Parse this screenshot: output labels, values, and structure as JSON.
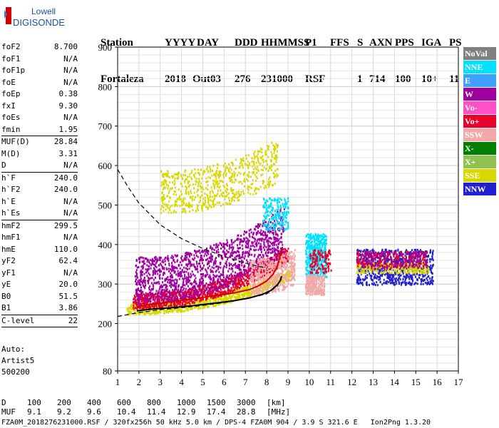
{
  "logo": {
    "line1": "Lowell",
    "line2": "DIGISONDE"
  },
  "header": {
    "labels": [
      "Station",
      "YYYY",
      "DAY",
      "DDD",
      "HHMMSS",
      "P1",
      "FFS",
      "S",
      "AXN",
      "PPS",
      "IGA",
      "PS"
    ],
    "values": [
      "Fortaleza",
      "2018",
      "Out03",
      "276",
      "231000",
      "RSF",
      "1",
      "714",
      "100",
      "10+",
      "11"
    ]
  },
  "params": [
    {
      "label": "foF2",
      "value": "8.700"
    },
    {
      "label": "foF1",
      "value": "N/A"
    },
    {
      "label": "foF1p",
      "value": "N/A"
    },
    {
      "label": "foE",
      "value": "N/A"
    },
    {
      "label": "foEp",
      "value": "0.38"
    },
    {
      "label": "fxI",
      "value": "9.30"
    },
    {
      "label": "foEs",
      "value": "N/A"
    },
    {
      "label": "fmin",
      "value": "1.95"
    },
    {
      "sep": true
    },
    {
      "label": "MUF(D)",
      "value": "28.84"
    },
    {
      "label": "M(D)",
      "value": "3.31"
    },
    {
      "label": "D",
      "value": "N/A"
    },
    {
      "sep": true
    },
    {
      "label": "h`F",
      "value": "240.0"
    },
    {
      "label": "h`F2",
      "value": "240.0"
    },
    {
      "label": "h`E",
      "value": "N/A"
    },
    {
      "label": "h`Es",
      "value": "N/A"
    },
    {
      "sep": true
    },
    {
      "label": "hmF2",
      "value": "299.5"
    },
    {
      "label": "hmF1",
      "value": "N/A"
    },
    {
      "label": "hmE",
      "value": "110.0"
    },
    {
      "label": "yF2",
      "value": "62.4"
    },
    {
      "label": "yF1",
      "value": "N/A"
    },
    {
      "label": "yE",
      "value": "20.0"
    },
    {
      "label": "B0",
      "value": "51.5"
    },
    {
      "label": "B1",
      "value": "3.86"
    },
    {
      "sep": true
    },
    {
      "label": "C-level",
      "value": "22"
    },
    {
      "sep": true
    }
  ],
  "auto": {
    "line1": "Auto:",
    "line2": "Artist5",
    "line3": "500200"
  },
  "legend": [
    {
      "label": "NoVal",
      "color": "#808080"
    },
    {
      "label": "NNE",
      "color": "#00e0ff"
    },
    {
      "label": "E",
      "color": "#40a0ff"
    },
    {
      "label": "W",
      "color": "#a000a0"
    },
    {
      "label": "Vo-",
      "color": "#ff50c8"
    },
    {
      "label": "Vo+",
      "color": "#e8002a"
    },
    {
      "label": "SSW",
      "color": "#f0a8a8"
    },
    {
      "label": "X-",
      "color": "#008000"
    },
    {
      "label": "X+",
      "color": "#90c050"
    },
    {
      "label": "SSE",
      "color": "#d8d800"
    },
    {
      "label": "NNW",
      "color": "#2020d0"
    }
  ],
  "dtable": {
    "row1_label": "D",
    "row1": [
      "100",
      "200",
      "400",
      "600",
      "800",
      "1000",
      "1500",
      "3000",
      "[km]"
    ],
    "row2_label": "MUF",
    "row2": [
      "9.1",
      "9.2",
      "9.6",
      "10.4",
      "11.4",
      "12.9",
      "17.4",
      "28.8",
      "[MHz]"
    ]
  },
  "footer": "FZA0M_2018276231000.RSF / 320fx256h 50 kHz 5.0 km / DPS-4 FZA0M 904 / 3.9 S 321.6 E   Ion2Png 1.3.20",
  "chart_data": {
    "type": "scatter",
    "title": "",
    "xlabel": "",
    "ylabel": "",
    "xlim": [
      1,
      17
    ],
    "ylim": [
      80,
      900
    ],
    "xticks": [
      1,
      2,
      3,
      4,
      5,
      6,
      7,
      8,
      9,
      10,
      11,
      12,
      13,
      14,
      15,
      16,
      17
    ],
    "yticks": [
      80,
      200,
      300,
      400,
      500,
      600,
      700,
      800,
      900
    ],
    "grid": true,
    "series": [
      {
        "name": "Vo+",
        "type": "line",
        "color": "#d00000",
        "x": [
          1.9,
          2.5,
          3.5,
          4.5,
          5.5,
          6.5,
          7.2,
          7.6,
          8.0,
          8.3,
          8.5,
          8.6,
          8.7
        ],
        "y": [
          242,
          248,
          255,
          262,
          270,
          278,
          286,
          295,
          308,
          325,
          345,
          365,
          390
        ]
      },
      {
        "name": "profile",
        "type": "line",
        "color": "#000000",
        "x": [
          1.9,
          2.5,
          3.5,
          4.5,
          5.5,
          6.5,
          7.2,
          7.8,
          8.2,
          8.5,
          8.65,
          8.7
        ],
        "y": [
          232,
          236,
          240,
          245,
          251,
          258,
          265,
          274,
          284,
          298,
          310,
          320
        ]
      },
      {
        "name": "",
        "type": "dashed",
        "color": "#000000",
        "x": [
          1.0,
          1.5,
          2.0,
          3.0,
          4.0,
          5.0,
          6.0,
          7.0,
          8.0
        ],
        "y": [
          590,
          545,
          505,
          450,
          415,
          390,
          370,
          353,
          340
        ]
      },
      {
        "name": "",
        "type": "dashed",
        "color": "#000000",
        "x": [
          1.0,
          2.0,
          3.0,
          4.0,
          5.0,
          6.0,
          7.0,
          8.0,
          8.5,
          8.7
        ],
        "y": [
          218,
          228,
          235,
          240,
          246,
          253,
          262,
          275,
          295,
          320
        ]
      }
    ],
    "scatter_regions": [
      {
        "name": "SSE",
        "color": "#d8d800",
        "xrange": [
          1.4,
          9.2
        ],
        "ylow": [
          225,
          315
        ],
        "thickness": 28,
        "density": 900
      },
      {
        "name": "Vo+",
        "color": "#e8002a",
        "xrange": [
          1.7,
          9.0
        ],
        "ylow": [
          238,
          360
        ],
        "thickness": 40,
        "density": 1100
      },
      {
        "name": "W",
        "color": "#a000a0",
        "xrange": [
          1.8,
          8.8
        ],
        "ylow": [
          250,
          380
        ],
        "thickness": 120,
        "density": 1500
      },
      {
        "name": "SSW",
        "color": "#f0a8a8",
        "xrange": [
          7.2,
          9.3
        ],
        "ylow": [
          275,
          300
        ],
        "thickness": 90,
        "density": 500
      },
      {
        "name": "NNE",
        "color": "#00e0ff",
        "xrange": [
          7.8,
          9.0
        ],
        "ylow": [
          440,
          440
        ],
        "thickness": 80,
        "density": 200
      },
      {
        "name": "SSE",
        "color": "#d8d800",
        "xrange": [
          3.0,
          8.5
        ],
        "ylow": [
          480,
          560
        ],
        "thickness": 110,
        "density": 700
      },
      {
        "name": "NNE",
        "color": "#00e0ff",
        "xrange": [
          9.8,
          10.8
        ],
        "ylow": [
          320,
          320
        ],
        "thickness": 110,
        "density": 450
      },
      {
        "name": "SSW",
        "color": "#f0a8a8",
        "xrange": [
          9.8,
          10.7
        ],
        "ylow": [
          275,
          275
        ],
        "thickness": 50,
        "density": 250
      },
      {
        "name": "Vo+",
        "color": "#e8002a",
        "xrange": [
          10.0,
          11.0
        ],
        "ylow": [
          330,
          330
        ],
        "thickness": 60,
        "density": 120
      },
      {
        "name": "NNW",
        "color": "#2020d0",
        "xrange": [
          12.2,
          15.8
        ],
        "ylow": [
          300,
          300
        ],
        "thickness": 90,
        "density": 700
      },
      {
        "name": "SSE",
        "color": "#d8d800",
        "xrange": [
          12.2,
          15.6
        ],
        "ylow": [
          330,
          330
        ],
        "thickness": 25,
        "density": 250
      },
      {
        "name": "Vo+",
        "color": "#e8002a",
        "xrange": [
          12.2,
          15.5
        ],
        "ylow": [
          345,
          345
        ],
        "thickness": 40,
        "density": 220
      },
      {
        "name": "W",
        "color": "#a000a0",
        "xrange": [
          12.4,
          15.5
        ],
        "ylow": [
          340,
          340
        ],
        "thickness": 45,
        "density": 180
      }
    ]
  }
}
